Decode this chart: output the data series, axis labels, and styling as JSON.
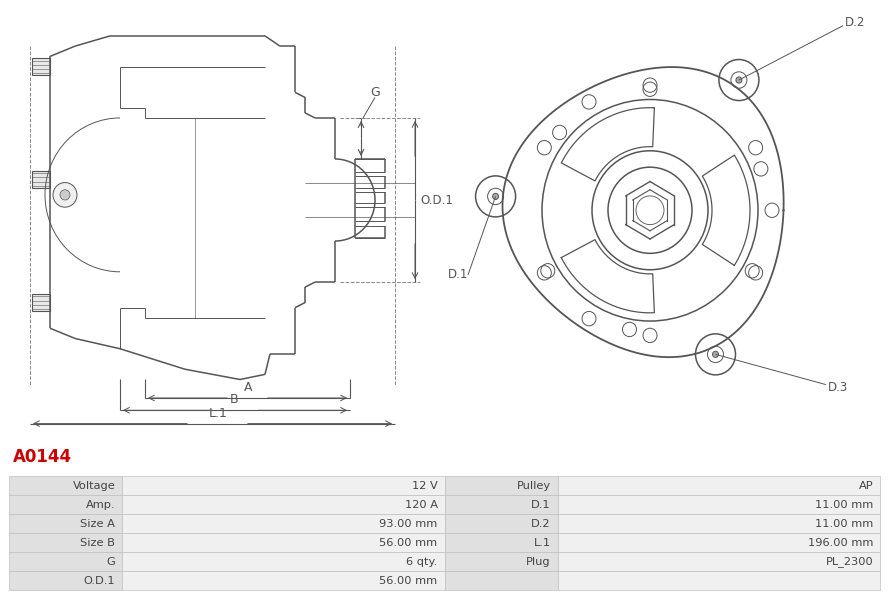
{
  "title": "A0144",
  "title_color": "#cc0000",
  "table_rows": [
    [
      "Voltage",
      "12 V",
      "Pulley",
      "AP"
    ],
    [
      "Amp.",
      "120 A",
      "D.1",
      "11.00 mm"
    ],
    [
      "Size A",
      "93.00 mm",
      "D.2",
      "11.00 mm"
    ],
    [
      "Size B",
      "56.00 mm",
      "L.1",
      "196.00 mm"
    ],
    [
      "G",
      "6 qty.",
      "Plug",
      "PL_2300"
    ],
    [
      "O.D.1",
      "56.00 mm",
      "",
      ""
    ]
  ],
  "bg_label": "#e0e0e0",
  "bg_value": "#f0f0f0",
  "table_border": "#c0c0c0",
  "text_color": "#444444",
  "line_color": "#555555"
}
